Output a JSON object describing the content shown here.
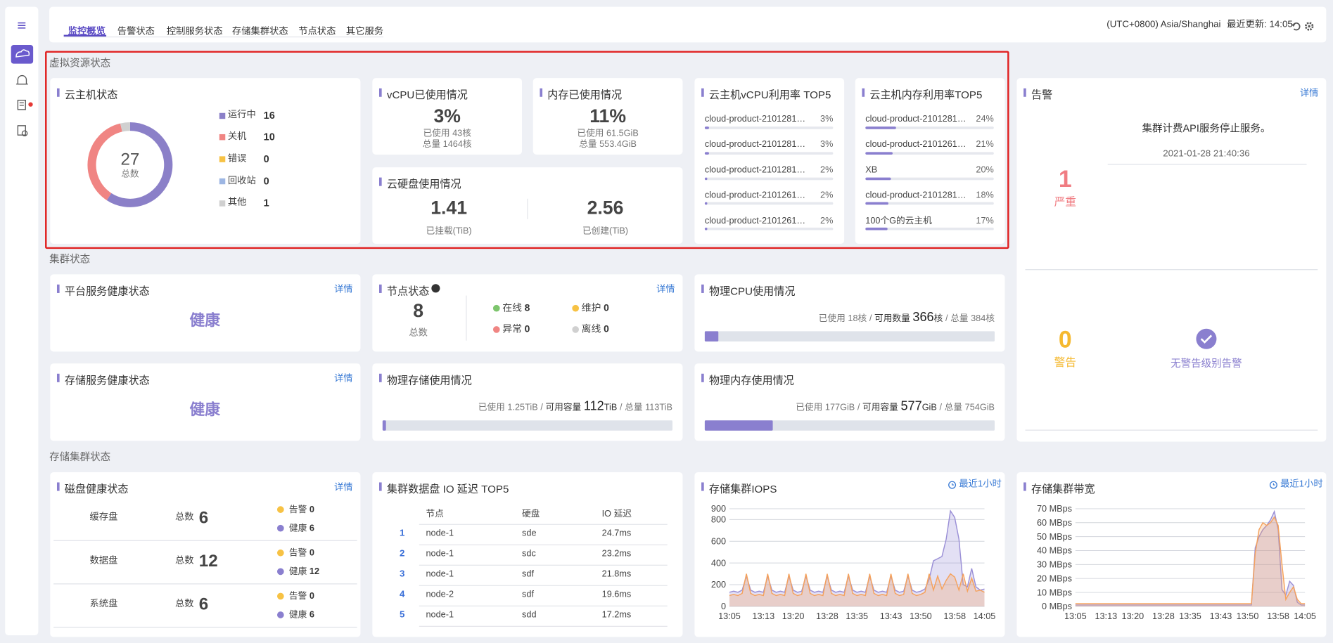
{
  "tabs": [
    "监控概览",
    "告警状态",
    "控制服务状态",
    "存储集群状态",
    "节点状态",
    "其它服务"
  ],
  "header": {
    "timezone": "(UTC+0800) Asia/Shanghai",
    "last_update": "最近更新: 14:05"
  },
  "virtual_resources": {
    "title": "虚拟资源状态",
    "vm_status": {
      "title": "云主机状态",
      "total": 27,
      "total_label": "总数",
      "items": [
        {
          "name": "运行中",
          "value": 16,
          "color": "#8b80c8"
        },
        {
          "name": "关机",
          "value": 10,
          "color": "#f08583"
        },
        {
          "name": "错误",
          "value": 0,
          "color": "#f7c244"
        },
        {
          "name": "回收站",
          "value": 0,
          "color": "#9db6e3"
        },
        {
          "name": "其他",
          "value": 1,
          "color": "#d0d0d0"
        }
      ]
    },
    "vcpu": {
      "title": "vCPU已使用情况",
      "percent": "3%",
      "used": "已使用 43核",
      "total": "总量 1464核"
    },
    "memory": {
      "title": "内存已使用情况",
      "percent": "11%",
      "used": "已使用 61.5GiB",
      "total": "总量 553.4GiB"
    },
    "cloud_disk": {
      "title": "云硬盘使用情况",
      "mounted": "1.41",
      "mounted_label": "已挂载(TiB)",
      "created": "2.56",
      "created_label": "已创建(TiB)"
    },
    "vcpu_top5": {
      "title": "云主机vCPU利用率 TOP5",
      "rows": [
        {
          "name": "cloud-product-2101281…",
          "value": 3,
          "label": "3%"
        },
        {
          "name": "cloud-product-2101281…",
          "value": 3,
          "label": "3%"
        },
        {
          "name": "cloud-product-2101281…",
          "value": 2,
          "label": "2%"
        },
        {
          "name": "cloud-product-2101261…",
          "value": 2,
          "label": "2%"
        },
        {
          "name": "cloud-product-2101261…",
          "value": 2,
          "label": "2%"
        }
      ]
    },
    "memory_top5": {
      "title": "云主机内存利用率TOP5",
      "rows": [
        {
          "name": "cloud-product-2101281…",
          "value": 24,
          "label": "24%"
        },
        {
          "name": "cloud-product-2101261…",
          "value": 21,
          "label": "21%"
        },
        {
          "name": "XB",
          "value": 20,
          "label": "20%"
        },
        {
          "name": "cloud-product-2101281…",
          "value": 18,
          "label": "18%"
        },
        {
          "name": "100个G的云主机",
          "value": 17,
          "label": "17%"
        }
      ]
    }
  },
  "cluster": {
    "title": "集群状态",
    "platform_health": {
      "title": "平台服务健康状态",
      "detail": "详情",
      "status": "健康"
    },
    "node_status": {
      "title": "节点状态",
      "detail": "详情",
      "total": 8,
      "total_label": "总数",
      "states": [
        {
          "name": "在线",
          "value": 8,
          "color": "#7dc56d"
        },
        {
          "name": "维护",
          "value": 0,
          "color": "#f7c244"
        },
        {
          "name": "异常",
          "value": 0,
          "color": "#f08583"
        },
        {
          "name": "离线",
          "value": 0,
          "color": "#d0d0d0"
        }
      ]
    },
    "physical_cpu": {
      "title": "物理CPU使用情况",
      "used_label": "已使用",
      "used": 18,
      "used_unit": "核",
      "separator": "/",
      "available_label": "可用数量",
      "available": 366,
      "available_unit": "核",
      "total_label": "总量",
      "total": 384,
      "total_unit": "核"
    },
    "storage_health": {
      "title": "存储服务健康状态",
      "detail": "详情",
      "status": "健康"
    },
    "physical_storage": {
      "title": "物理存储使用情况",
      "used_label": "已使用",
      "used": 1.25,
      "used_unit": "TiB",
      "separator": "/",
      "available_label": "可用容量",
      "available": 112,
      "available_unit": "TiB",
      "total_label": "总量",
      "total": 113,
      "total_unit": "TiB"
    },
    "physical_memory": {
      "title": "物理内存使用情况",
      "used_label": "已使用",
      "used": 177,
      "used_unit": "GiB",
      "separator": "/",
      "available_label": "可用容量",
      "available": 577,
      "available_unit": "GiB",
      "total_label": "总量",
      "total": 754,
      "total_unit": "GiB"
    }
  },
  "alerts": {
    "title": "告警",
    "detail": "详情",
    "critical": {
      "count": 1,
      "label": "严重",
      "message": "集群计费API服务停止服务。",
      "time": "2021-01-28 21:40:36"
    },
    "warning": {
      "count": 0,
      "label": "警告",
      "message": "无警告级别告警"
    }
  },
  "storage_cluster": {
    "title": "存储集群状态",
    "disk_health": {
      "title": "磁盘健康状态",
      "detail": "详情",
      "rows": [
        {
          "name": "缓存盘",
          "total_label": "总数",
          "total": 6,
          "warning_label": "告警",
          "warning": 0,
          "healthy_label": "健康",
          "healthy": 6
        },
        {
          "name": "数据盘",
          "total_label": "总数",
          "total": 12,
          "warning_label": "告警",
          "warning": 0,
          "healthy_label": "健康",
          "healthy": 12
        },
        {
          "name": "系统盘",
          "total_label": "总数",
          "total": 6,
          "warning_label": "告警",
          "warning": 0,
          "healthy_label": "健康",
          "healthy": 6
        }
      ]
    },
    "io_latency": {
      "title": "集群数据盘 IO 延迟 TOP5",
      "columns": [
        "节点",
        "硬盘",
        "IO 延迟"
      ],
      "rows": [
        [
          1,
          "node-1",
          "sde",
          "24.7ms"
        ],
        [
          2,
          "node-1",
          "sdc",
          "23.2ms"
        ],
        [
          3,
          "node-1",
          "sdf",
          "21.8ms"
        ],
        [
          4,
          "node-2",
          "sdf",
          "19.6ms"
        ],
        [
          5,
          "node-1",
          "sdd",
          "17.2ms"
        ]
      ]
    }
  },
  "chart_data": [
    {
      "type": "line",
      "title": "存储集群IOPS",
      "range_label": "最近1小时",
      "x": [
        "13:05",
        null,
        null,
        null,
        null,
        null,
        null,
        null,
        "13:13",
        null,
        null,
        null,
        null,
        null,
        null,
        "13:20",
        null,
        null,
        null,
        null,
        null,
        null,
        null,
        "13:28",
        null,
        null,
        null,
        null,
        null,
        null,
        "13:35",
        null,
        null,
        null,
        null,
        null,
        null,
        null,
        "13:43",
        null,
        null,
        null,
        null,
        null,
        null,
        "13:50",
        null,
        null,
        null,
        null,
        null,
        null,
        null,
        "13:58",
        null,
        null,
        null,
        null,
        null,
        null,
        "14:05"
      ],
      "series": [
        {
          "color": "#9a8fd6",
          "values": [
            130,
            140,
            130,
            150,
            280,
            150,
            130,
            140,
            130,
            280,
            150,
            130,
            140,
            130,
            280,
            150,
            130,
            140,
            280,
            150,
            130,
            140,
            130,
            280,
            150,
            130,
            140,
            130,
            280,
            150,
            130,
            140,
            130,
            280,
            150,
            130,
            140,
            130,
            280,
            150,
            130,
            140,
            280,
            150,
            130,
            140,
            160,
            250,
            420,
            440,
            460,
            620,
            880,
            820,
            620,
            200,
            180,
            350,
            180,
            150,
            160
          ]
        },
        {
          "color": "#f5a25d",
          "values": [
            100,
            110,
            100,
            120,
            300,
            120,
            100,
            110,
            100,
            300,
            120,
            100,
            110,
            100,
            300,
            120,
            100,
            110,
            300,
            120,
            100,
            110,
            100,
            300,
            120,
            100,
            110,
            100,
            300,
            120,
            100,
            110,
            100,
            300,
            120,
            100,
            110,
            100,
            300,
            120,
            100,
            110,
            300,
            120,
            100,
            110,
            130,
            300,
            150,
            280,
            160,
            240,
            300,
            270,
            150,
            300,
            140,
            260,
            140,
            150,
            130
          ]
        }
      ],
      "ylim": [
        0,
        900
      ],
      "yticks": [
        0,
        200,
        400,
        600,
        800,
        900
      ],
      "grid": true
    },
    {
      "type": "line",
      "title": "存储集群带宽",
      "range_label": "最近1小时",
      "x": [
        "13:05",
        null,
        null,
        null,
        null,
        null,
        null,
        null,
        "13:13",
        null,
        null,
        null,
        null,
        null,
        null,
        "13:20",
        null,
        null,
        null,
        null,
        null,
        null,
        null,
        "13:28",
        null,
        null,
        null,
        null,
        null,
        null,
        "13:35",
        null,
        null,
        null,
        null,
        null,
        null,
        null,
        "13:43",
        null,
        null,
        null,
        null,
        null,
        null,
        "13:50",
        null,
        null,
        null,
        null,
        null,
        null,
        null,
        "13:58",
        null,
        null,
        null,
        null,
        null,
        null,
        "14:05"
      ],
      "series": [
        {
          "color": "#9a8fd6",
          "values": [
            1,
            1,
            1,
            1,
            1,
            1,
            1,
            1,
            1,
            1,
            1,
            1,
            1,
            1,
            1,
            1,
            1,
            1,
            1,
            1,
            1,
            1,
            1,
            1,
            1,
            1,
            1,
            1,
            1,
            1,
            1,
            1,
            1,
            1,
            1,
            1,
            1,
            1,
            1,
            1,
            1,
            1,
            1,
            1,
            1,
            1,
            1,
            42,
            50,
            55,
            58,
            62,
            68,
            55,
            12,
            8,
            18,
            15,
            3,
            1,
            1
          ]
        },
        {
          "color": "#f5a25d",
          "values": [
            2,
            2,
            2,
            2,
            2,
            2,
            2,
            2,
            2,
            2,
            2,
            2,
            2,
            2,
            2,
            2,
            2,
            2,
            2,
            2,
            2,
            2,
            2,
            2,
            2,
            2,
            2,
            2,
            2,
            2,
            2,
            2,
            2,
            2,
            2,
            2,
            2,
            2,
            2,
            2,
            2,
            2,
            2,
            2,
            2,
            2,
            2,
            38,
            55,
            60,
            58,
            60,
            64,
            58,
            30,
            5,
            10,
            14,
            5,
            2,
            2
          ]
        }
      ],
      "ylim": [
        0,
        70
      ],
      "yticks": [
        {
          "value": 0,
          "label": "0 MBps"
        },
        {
          "value": 10,
          "label": "10 MBps"
        },
        {
          "value": 20,
          "label": "20 MBps"
        },
        {
          "value": 30,
          "label": "30 MBps"
        },
        {
          "value": 40,
          "label": "40 MBps"
        },
        {
          "value": 50,
          "label": "50 MBps"
        },
        {
          "value": 60,
          "label": "60 MBps"
        },
        {
          "value": 70,
          "label": "70 MBps"
        }
      ],
      "grid": true
    }
  ]
}
